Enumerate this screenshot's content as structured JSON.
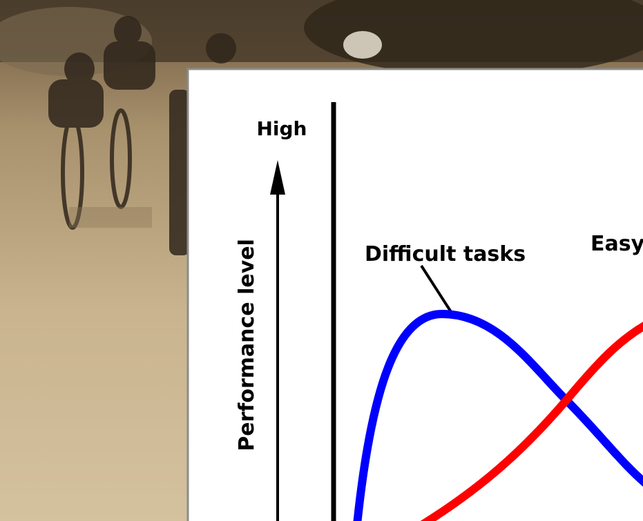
{
  "labels": {
    "high": "High",
    "y_axis": "Performance level",
    "difficult": "Difficult tasks",
    "easy": "Easy"
  }
}
